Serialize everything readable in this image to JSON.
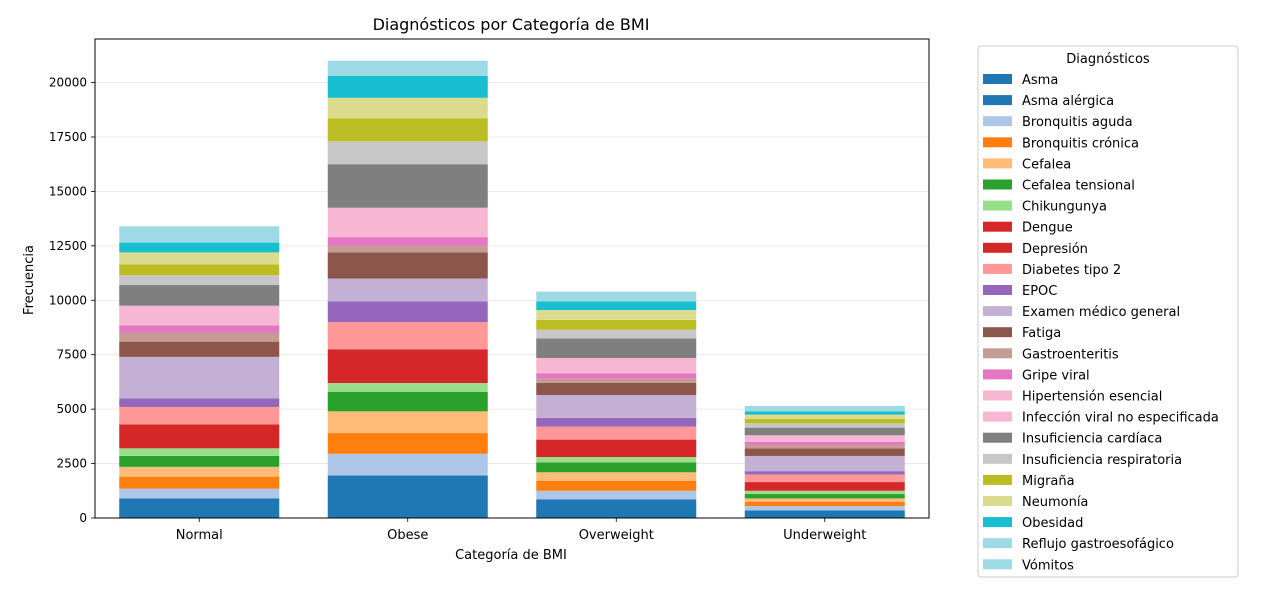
{
  "chart_data": {
    "type": "bar",
    "stacked": true,
    "title": "Diagnósticos por Categoría de BMI",
    "xlabel": "Categoría de BMI",
    "ylabel": "Frecuencia",
    "ylim": [
      0,
      22000
    ],
    "yticks": [
      0,
      2500,
      5000,
      7500,
      10000,
      12500,
      15000,
      17500,
      20000
    ],
    "grid": "horizontal",
    "legend_title": "Diagnósticos",
    "legend_placement": "outside-right",
    "categories": [
      "Normal",
      "Obese",
      "Overweight",
      "Underweight"
    ],
    "series": [
      {
        "name": "Asma",
        "color": "#1f77b4",
        "values": [
          900,
          1950,
          850,
          350
        ]
      },
      {
        "name": "Asma alérgica",
        "color": "#1f77b4",
        "values": [
          0,
          0,
          0,
          0
        ]
      },
      {
        "name": "Bronquitis aguda",
        "color": "#aec7e8",
        "values": [
          450,
          1000,
          400,
          200
        ]
      },
      {
        "name": "Bronquitis crónica",
        "color": "#ff7f0e",
        "values": [
          550,
          950,
          450,
          200
        ]
      },
      {
        "name": "Cefalea",
        "color": "#ffbb78",
        "values": [
          450,
          1000,
          400,
          150
        ]
      },
      {
        "name": "Cefalea tensional",
        "color": "#2ca02c",
        "values": [
          500,
          900,
          450,
          200
        ]
      },
      {
        "name": "Chikungunya",
        "color": "#98df8a",
        "values": [
          350,
          400,
          250,
          150
        ]
      },
      {
        "name": "Dengue",
        "color": "#d62728",
        "values": [
          0,
          0,
          0,
          0
        ]
      },
      {
        "name": "Depresión",
        "color": "#d62728",
        "values": [
          1100,
          1550,
          800,
          400
        ]
      },
      {
        "name": "Diabetes tipo 2",
        "color": "#ff9896",
        "values": [
          800,
          1250,
          600,
          350
        ]
      },
      {
        "name": "EPOC",
        "color": "#9467bd",
        "values": [
          400,
          950,
          400,
          150
        ]
      },
      {
        "name": "Examen médico general",
        "color": "#c5b0d5",
        "values": [
          1900,
          1050,
          1050,
          700
        ]
      },
      {
        "name": "Fatiga",
        "color": "#8c564b",
        "values": [
          700,
          1200,
          550,
          350
        ]
      },
      {
        "name": "Gastroenteritis",
        "color": "#c49c94",
        "values": [
          400,
          300,
          200,
          150
        ]
      },
      {
        "name": "Gripe viral",
        "color": "#e377c2",
        "values": [
          350,
          400,
          250,
          150
        ]
      },
      {
        "name": "Hipertensión esencial",
        "color": "#f7b6d2",
        "values": [
          0,
          0,
          0,
          0
        ]
      },
      {
        "name": "Infección viral no especificada",
        "color": "#f7b6d2",
        "values": [
          900,
          1350,
          700,
          300
        ]
      },
      {
        "name": "Insuficiencia cardíaca",
        "color": "#7f7f7f",
        "values": [
          950,
          2000,
          900,
          350
        ]
      },
      {
        "name": "Insuficiencia respiratoria",
        "color": "#c7c7c7",
        "values": [
          450,
          1050,
          400,
          200
        ]
      },
      {
        "name": "Migraña",
        "color": "#bcbd22",
        "values": [
          500,
          1050,
          450,
          200
        ]
      },
      {
        "name": "Neumonía",
        "color": "#dbdb8d",
        "values": [
          550,
          950,
          450,
          200
        ]
      },
      {
        "name": "Obesidad",
        "color": "#17becf",
        "values": [
          450,
          1000,
          400,
          150
        ]
      },
      {
        "name": "Reflujo gastroesofágico",
        "color": "#9edae5",
        "values": [
          0,
          0,
          0,
          0
        ]
      },
      {
        "name": "Vómitos",
        "color": "#9edae5",
        "values": [
          750,
          700,
          450,
          250
        ]
      }
    ]
  }
}
